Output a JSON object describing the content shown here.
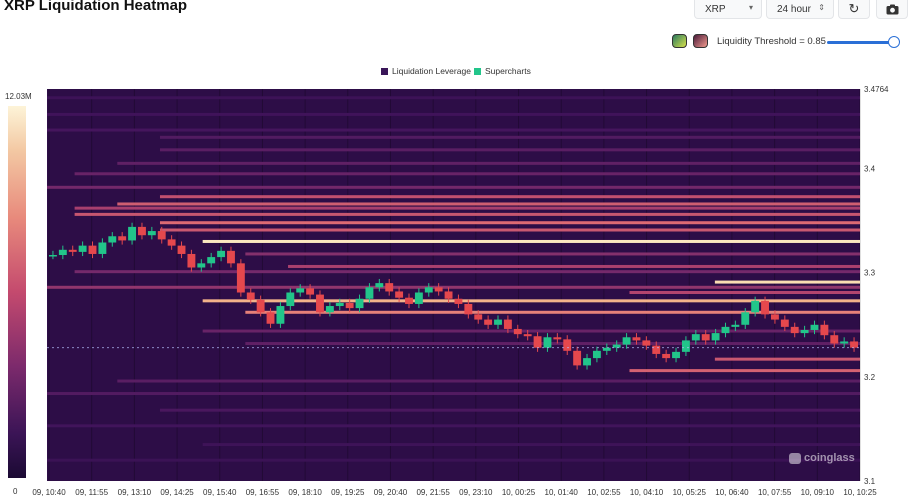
{
  "header": {
    "title": "XRP Liquidation Heatmap",
    "symbol_select": "XRP",
    "range_select": "24 hour"
  },
  "icons": {
    "symbol_caret": "chevron-down-icon",
    "range_caret": "stepper-icon",
    "refresh": "refresh-icon",
    "camera": "camera-icon"
  },
  "threshold": {
    "label": "Liquidity Threshold = 0.85",
    "value": 0.85
  },
  "legend": {
    "liquidation": "Liquidation Leverage",
    "supercharts": "Supercharts"
  },
  "colorbar": {
    "max_label": "12.03M",
    "min_label": "0"
  },
  "watermark": "coinglass",
  "colors": {
    "heat_bg": "#2d0d47",
    "candle_up": "#22c58a",
    "candle_down": "#e5484d",
    "price_line": "#b9c2ff"
  },
  "chart_data": {
    "type": "heatmap",
    "title": "XRP Liquidation Heatmap",
    "x_ticks": [
      "09, 10:40",
      "09, 11:55",
      "09, 13:10",
      "09, 14:25",
      "09, 15:40",
      "09, 16:55",
      "09, 18:10",
      "09, 19:25",
      "09, 20:40",
      "09, 21:55",
      "09, 23:10",
      "10, 00:25",
      "10, 01:40",
      "10, 02:55",
      "10, 04:10",
      "10, 05:25",
      "10, 06:40",
      "10, 07:55",
      "10, 09:10",
      "10, 10:25"
    ],
    "y_ticks": [
      3.4764,
      3.4,
      3.3,
      3.2,
      3.1
    ],
    "y_tick_labels": [
      "3.4764",
      "3.4",
      "3.3",
      "3.2",
      "3.1"
    ],
    "ylim": [
      3.1,
      3.4764
    ],
    "colorbar_range": [
      0,
      12.03
    ],
    "colorbar_unit": "M",
    "price_series": [
      3.317,
      3.322,
      3.32,
      3.326,
      3.318,
      3.329,
      3.335,
      3.331,
      3.344,
      3.336,
      3.34,
      3.332,
      3.326,
      3.318,
      3.305,
      3.309,
      3.315,
      3.321,
      3.309,
      3.281,
      3.274,
      3.262,
      3.251,
      3.268,
      3.281,
      3.285,
      3.279,
      3.262,
      3.268,
      3.271,
      3.266,
      3.275,
      3.286,
      3.29,
      3.282,
      3.276,
      3.27,
      3.281,
      3.286,
      3.282,
      3.275,
      3.27,
      3.26,
      3.255,
      3.25,
      3.255,
      3.246,
      3.241,
      3.239,
      3.228,
      3.238,
      3.236,
      3.225,
      3.211,
      3.218,
      3.225,
      3.228,
      3.231,
      3.238,
      3.235,
      3.23,
      3.222,
      3.218,
      3.224,
      3.235,
      3.241,
      3.235,
      3.242,
      3.248,
      3.25,
      3.262,
      3.273,
      3.26,
      3.255,
      3.248,
      3.242,
      3.245,
      3.25,
      3.24,
      3.232,
      3.234,
      3.228
    ],
    "liquidity_bands": [
      {
        "y": 3.468,
        "x_start": "09, 10:40",
        "level": 1.5
      },
      {
        "y": 3.452,
        "x_start": "09, 10:40",
        "level": 1.8
      },
      {
        "y": 3.437,
        "x_start": "09, 10:40",
        "level": 2.1
      },
      {
        "y": 3.43,
        "x_start": "09, 14:25",
        "level": 2.6
      },
      {
        "y": 3.418,
        "x_start": "09, 14:25",
        "level": 2.9
      },
      {
        "y": 3.405,
        "x_start": "09, 13:10",
        "level": 3.1
      },
      {
        "y": 3.395,
        "x_start": "09, 11:55",
        "level": 3.4
      },
      {
        "y": 3.382,
        "x_start": "09, 10:40",
        "level": 3.8
      },
      {
        "y": 3.373,
        "x_start": "09, 14:25",
        "level": 6.5
      },
      {
        "y": 3.366,
        "x_start": "09, 13:10",
        "level": 7.2
      },
      {
        "y": 3.362,
        "x_start": "09, 11:55",
        "level": 5.5
      },
      {
        "y": 3.356,
        "x_start": "09, 11:55",
        "level": 6.8
      },
      {
        "y": 3.348,
        "x_start": "09, 14:25",
        "level": 7.8
      },
      {
        "y": 3.341,
        "x_start": "09, 14:25",
        "level": 6.9
      },
      {
        "y": 3.33,
        "x_start": "09, 15:40",
        "level": 11.6
      },
      {
        "y": 3.318,
        "x_start": "09, 16:55",
        "level": 4.4
      },
      {
        "y": 3.306,
        "x_start": "09, 18:10",
        "level": 5.6
      },
      {
        "y": 3.301,
        "x_start": "09, 11:55",
        "level": 3.9
      },
      {
        "y": 3.291,
        "x_start": "10, 06:40",
        "level": 11.2
      },
      {
        "y": 3.286,
        "x_start": "09, 10:40",
        "level": 4.8
      },
      {
        "y": 3.281,
        "x_start": "10, 04:10",
        "level": 5.9
      },
      {
        "y": 3.273,
        "x_start": "09, 15:40",
        "level": 9.8
      },
      {
        "y": 3.262,
        "x_start": "09, 16:55",
        "level": 8.5
      },
      {
        "y": 3.244,
        "x_start": "09, 15:40",
        "level": 3.4
      },
      {
        "y": 3.232,
        "x_start": "09, 16:55",
        "level": 3.1
      },
      {
        "y": 3.217,
        "x_start": "10, 06:40",
        "level": 6.9
      },
      {
        "y": 3.206,
        "x_start": "10, 04:10",
        "level": 7.4
      },
      {
        "y": 3.196,
        "x_start": "09, 13:10",
        "level": 2.9
      },
      {
        "y": 3.184,
        "x_start": "09, 10:40",
        "level": 2.6
      },
      {
        "y": 3.168,
        "x_start": "09, 14:25",
        "level": 2.3
      },
      {
        "y": 3.153,
        "x_start": "09, 10:40",
        "level": 1.9
      },
      {
        "y": 3.135,
        "x_start": "09, 15:40",
        "level": 1.6
      },
      {
        "y": 3.12,
        "x_start": "09, 10:40",
        "level": 1.3
      }
    ]
  }
}
